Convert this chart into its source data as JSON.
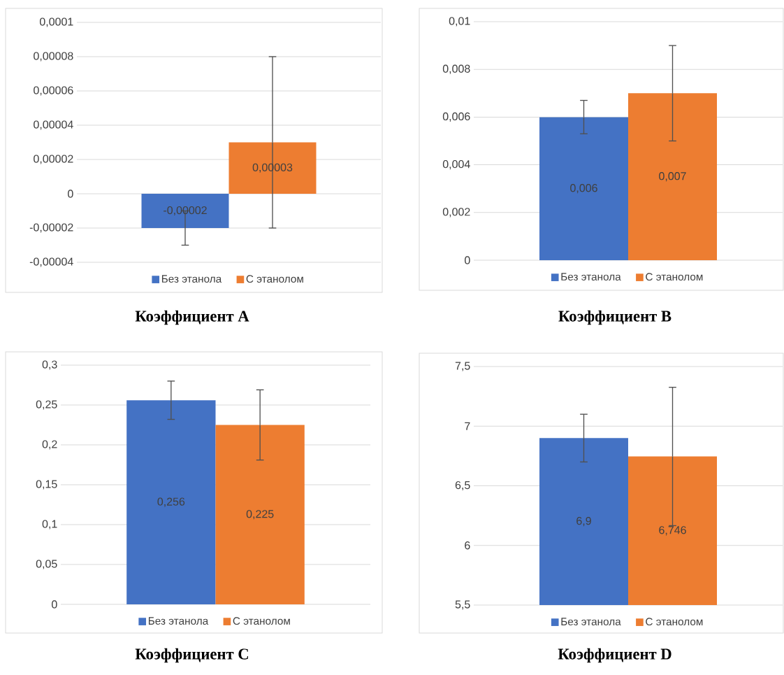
{
  "chart_data": [
    {
      "type": "bar",
      "title": "Коэффициент A",
      "categories": [
        null
      ],
      "series": [
        {
          "name": "Без этанола",
          "color": "#4472c4",
          "values": [
            -2e-05
          ],
          "errors": [
            1e-05
          ],
          "value_labels": [
            "-0,00002"
          ]
        },
        {
          "name": "С этанолом",
          "color": "#ed7d31",
          "values": [
            3e-05
          ],
          "errors": [
            5e-05
          ],
          "value_labels": [
            "0,00003"
          ]
        }
      ],
      "ylim": [
        -4e-05,
        0.0001
      ],
      "yticks": [
        {
          "value": -4e-05,
          "label": "-0,00004"
        },
        {
          "value": -2e-05,
          "label": "-0,00002"
        },
        0,
        {
          "value": 2e-05,
          "label": "0,00002"
        },
        {
          "value": 4e-05,
          "label": "0,00004"
        },
        {
          "value": 6e-05,
          "label": "0,00006"
        },
        {
          "value": 8e-05,
          "label": "0,00008"
        },
        {
          "value": 0.0001,
          "label": "0,0001"
        }
      ],
      "grid": "y",
      "legend": "bottom"
    },
    {
      "type": "bar",
      "title": "Коэффициент B",
      "categories": [
        null
      ],
      "series": [
        {
          "name": "Без этанола",
          "color": "#4472c4",
          "values": [
            0.006
          ],
          "errors": [
            0.0007
          ],
          "value_labels": [
            "0,006"
          ]
        },
        {
          "name": "С этанолом",
          "color": "#ed7d31",
          "values": [
            0.007
          ],
          "errors": [
            0.002
          ],
          "value_labels": [
            "0,007"
          ]
        }
      ],
      "ylim": [
        0,
        0.01
      ],
      "yticks": [
        0,
        {
          "value": 0.002,
          "label": "0,002"
        },
        {
          "value": 0.004,
          "label": "0,004"
        },
        {
          "value": 0.006,
          "label": "0,006"
        },
        {
          "value": 0.008,
          "label": "0,008"
        },
        {
          "value": 0.01,
          "label": "0,01"
        }
      ],
      "grid": "y",
      "legend": "bottom"
    },
    {
      "type": "bar",
      "title": "Коэффициент C",
      "categories": [
        null
      ],
      "series": [
        {
          "name": "Без этанола",
          "color": "#4472c4",
          "values": [
            0.256
          ],
          "errors": [
            0.024
          ],
          "value_labels": [
            "0,256"
          ]
        },
        {
          "name": "С этанолом",
          "color": "#ed7d31",
          "values": [
            0.225
          ],
          "errors": [
            0.044
          ],
          "value_labels": [
            "0,225"
          ]
        }
      ],
      "ylim": [
        0,
        0.3
      ],
      "yticks": [
        0,
        {
          "value": 0.05,
          "label": "0,05"
        },
        {
          "value": 0.1,
          "label": "0,1"
        },
        {
          "value": 0.15,
          "label": "0,15"
        },
        {
          "value": 0.2,
          "label": "0,2"
        },
        {
          "value": 0.25,
          "label": "0,25"
        },
        {
          "value": 0.3,
          "label": "0,3"
        }
      ],
      "grid": "y",
      "legend": "bottom"
    },
    {
      "type": "bar",
      "title": "Коэффициент D",
      "categories": [
        null
      ],
      "series": [
        {
          "name": "Без этанола",
          "color": "#4472c4",
          "values": [
            6.9
          ],
          "errors": [
            0.2
          ],
          "value_labels": [
            "6,9"
          ]
        },
        {
          "name": "С этанолом",
          "color": "#ed7d31",
          "values": [
            6.746
          ],
          "errors": [
            0.58
          ],
          "value_labels": [
            "6,746"
          ]
        }
      ],
      "ylim": [
        5.5,
        7.5
      ],
      "yticks": [
        {
          "value": 5.5,
          "label": "5,5"
        },
        6,
        {
          "value": 6.5,
          "label": "6,5"
        },
        7,
        {
          "value": 7.5,
          "label": "7,5"
        }
      ],
      "grid": "y",
      "legend": "bottom"
    }
  ]
}
